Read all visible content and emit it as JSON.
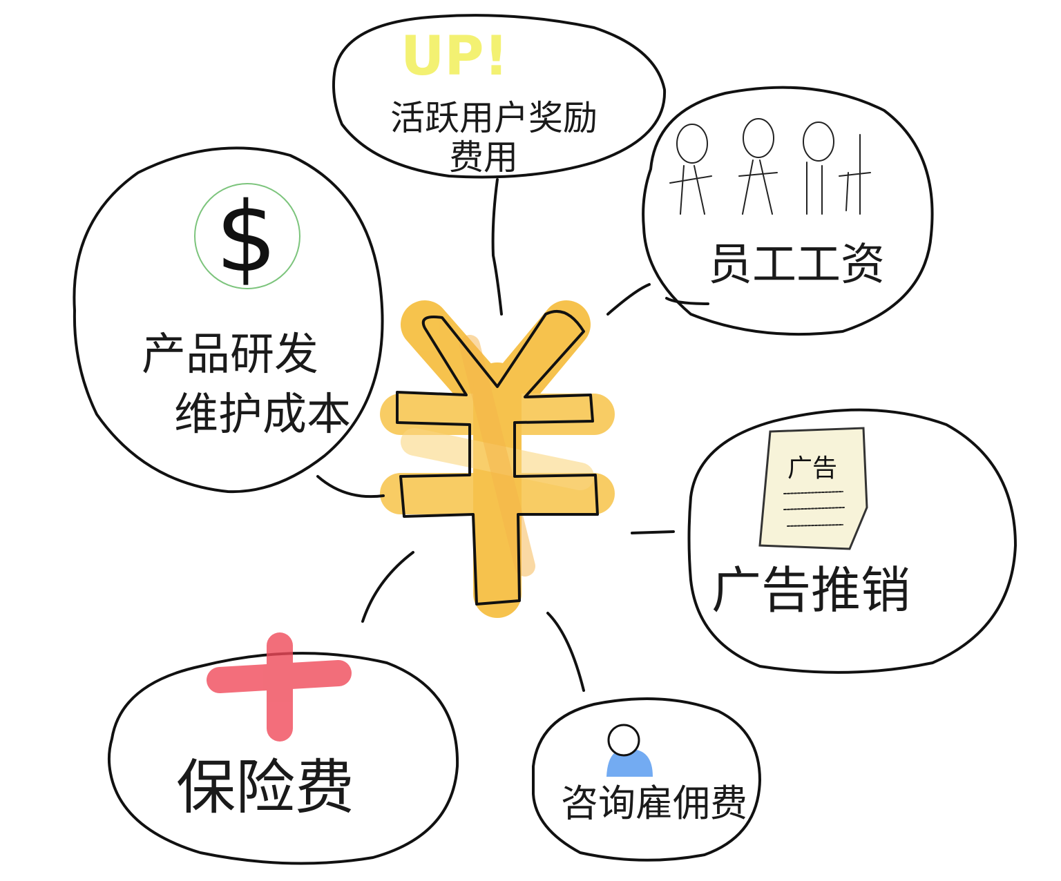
{
  "center": {
    "symbol": "¥",
    "color": "#f5b82e"
  },
  "nodes": [
    {
      "id": "active-user-reward",
      "label_lines": [
        "活跃用户奖励",
        "费用"
      ],
      "icon": "up-text-icon",
      "icon_text": "UP!",
      "icon_color": "#f2ef5a"
    },
    {
      "id": "employee-salary",
      "label_lines": [
        "员工工资"
      ],
      "icon": "people-icon",
      "icon_color": "#fbf7d8"
    },
    {
      "id": "rd-maintenance",
      "label_lines": [
        "产品研发",
        "维护成本"
      ],
      "icon": "dollar-icon",
      "icon_text": "$",
      "icon_color": "#7cc47c"
    },
    {
      "id": "advertising",
      "label_lines": [
        "广告推销"
      ],
      "icon": "ad-poster-icon",
      "icon_text": "广告",
      "icon_color": "#f7f3d9"
    },
    {
      "id": "insurance",
      "label_lines": [
        "保险费"
      ],
      "icon": "red-cross-icon",
      "icon_color": "#f04a5a"
    },
    {
      "id": "consulting",
      "label_lines": [
        "咨询雇佣费"
      ],
      "icon": "person-icon",
      "icon_color": "#5b9cf0"
    }
  ]
}
